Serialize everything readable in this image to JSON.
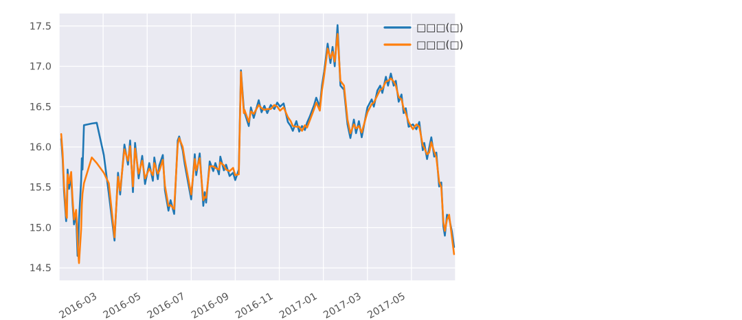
{
  "figure": {
    "background": "#ffffff",
    "plot_background": "#eaeaf2",
    "grid_color": "#ffffff",
    "tick_label_color": "#555555",
    "legend_text_color": "#262626"
  },
  "chart_data": {
    "type": "line",
    "title": "",
    "xlabel": "",
    "ylabel": "",
    "grid": true,
    "legend_position": "upper right",
    "x_axis": {
      "range_start": "2016-01-01",
      "range_end": "2017-07-01",
      "ticks": [
        "2016-03",
        "2016-05",
        "2016-07",
        "2016-09",
        "2016-11",
        "2017-01",
        "2017-03",
        "2017-05"
      ],
      "tick_rotation_deg": 30
    },
    "y_axis": {
      "range": [
        14.34,
        17.66
      ],
      "ticks": [
        "14.5",
        "15.0",
        "15.5",
        "16.0",
        "16.5",
        "17.0",
        "17.5"
      ]
    },
    "x": [
      "2016-01-04",
      "2016-01-06",
      "2016-01-08",
      "2016-01-11",
      "2016-01-12",
      "2016-01-13",
      "2016-01-15",
      "2016-01-18",
      "2016-01-20",
      "2016-01-22",
      "2016-01-25",
      "2016-01-26",
      "2016-01-27",
      "2016-01-28",
      "2016-01-29",
      "2016-02-01",
      "2016-02-02",
      "2016-02-03",
      "2016-02-05",
      "2016-02-16",
      "2016-02-23",
      "2016-03-02",
      "2016-03-09",
      "2016-03-17",
      "2016-03-22",
      "2016-03-25",
      "2016-03-31",
      "2016-04-05",
      "2016-04-08",
      "2016-04-12",
      "2016-04-15",
      "2016-04-20",
      "2016-04-25",
      "2016-04-29",
      "2016-05-04",
      "2016-05-09",
      "2016-05-11",
      "2016-05-16",
      "2016-05-18",
      "2016-05-23",
      "2016-05-26",
      "2016-05-31",
      "2016-06-03",
      "2016-06-08",
      "2016-06-13",
      "2016-06-15",
      "2016-06-20",
      "2016-06-23",
      "2016-06-28",
      "2016-07-01",
      "2016-07-06",
      "2016-07-08",
      "2016-07-13",
      "2016-07-18",
      "2016-07-20",
      "2016-07-22",
      "2016-07-27",
      "2016-08-01",
      "2016-08-04",
      "2016-08-09",
      "2016-08-11",
      "2016-08-16",
      "2016-08-19",
      "2016-08-24",
      "2016-08-29",
      "2016-09-01",
      "2016-09-06",
      "2016-09-09",
      "2016-09-13",
      "2016-09-14",
      "2016-09-20",
      "2016-09-23",
      "2016-09-27",
      "2016-10-03",
      "2016-10-07",
      "2016-10-11",
      "2016-10-15",
      "2016-10-20",
      "2016-10-25",
      "2016-10-29",
      "2016-11-02",
      "2016-11-07",
      "2016-11-13",
      "2016-11-17",
      "2016-11-20",
      "2016-11-25",
      "2016-11-29",
      "2016-12-02",
      "2016-12-06",
      "2016-12-09",
      "2016-12-13",
      "2016-12-16",
      "2016-12-19",
      "2016-12-22",
      "2016-12-27",
      "2016-12-30",
      "2017-01-02",
      "2017-01-07",
      "2017-01-11",
      "2017-01-14",
      "2017-01-17",
      "2017-01-21",
      "2017-01-25",
      "2017-01-30",
      "2017-02-04",
      "2017-02-08",
      "2017-02-13",
      "2017-02-16",
      "2017-02-20",
      "2017-02-24",
      "2017-03-01",
      "2017-03-07",
      "2017-03-10",
      "2017-03-15",
      "2017-03-19",
      "2017-03-22",
      "2017-03-27",
      "2017-03-30",
      "2017-04-03",
      "2017-04-07",
      "2017-04-10",
      "2017-04-14",
      "2017-04-18",
      "2017-04-21",
      "2017-04-24",
      "2017-04-28",
      "2017-05-03",
      "2017-05-08",
      "2017-05-12",
      "2017-05-17",
      "2017-05-19",
      "2017-05-23",
      "2017-05-26",
      "2017-05-29",
      "2017-06-02",
      "2017-06-05",
      "2017-06-09",
      "2017-06-12",
      "2017-06-15",
      "2017-06-17",
      "2017-06-20",
      "2017-06-23",
      "2017-06-27",
      "2017-06-30"
    ],
    "series": [
      {
        "name": "□□□(□)",
        "color": "#1f77b4",
        "values": [
          16.1,
          15.85,
          15.45,
          15.08,
          15.32,
          15.72,
          15.48,
          15.63,
          15.3,
          15.04,
          15.16,
          14.9,
          14.65,
          14.82,
          15.1,
          15.58,
          15.86,
          15.72,
          16.27,
          16.29,
          16.3,
          15.9,
          15.42,
          14.84,
          15.68,
          15.41,
          16.03,
          15.78,
          16.08,
          15.44,
          16.05,
          15.61,
          15.89,
          15.54,
          15.8,
          15.58,
          15.87,
          15.6,
          15.77,
          15.9,
          15.46,
          15.21,
          15.34,
          15.17,
          16.08,
          16.13,
          15.96,
          15.78,
          15.54,
          15.35,
          15.91,
          15.65,
          15.92,
          15.27,
          15.44,
          15.31,
          15.82,
          15.7,
          15.8,
          15.66,
          15.88,
          15.71,
          15.78,
          15.64,
          15.68,
          15.59,
          15.72,
          16.95,
          16.47,
          16.43,
          16.26,
          16.49,
          16.36,
          16.58,
          16.43,
          16.51,
          16.42,
          16.52,
          16.47,
          16.55,
          16.5,
          16.54,
          16.31,
          16.26,
          16.2,
          16.32,
          16.19,
          16.26,
          16.21,
          16.3,
          16.38,
          16.45,
          16.52,
          16.61,
          16.5,
          16.76,
          16.93,
          17.28,
          17.04,
          17.24,
          17.0,
          17.51,
          16.76,
          16.71,
          16.28,
          16.11,
          16.34,
          16.17,
          16.32,
          16.12,
          16.49,
          16.59,
          16.5,
          16.7,
          16.76,
          16.67,
          16.87,
          16.76,
          16.91,
          16.76,
          16.82,
          16.56,
          16.65,
          16.42,
          16.48,
          16.25,
          16.28,
          16.22,
          16.31,
          15.96,
          16.05,
          15.85,
          15.99,
          16.12,
          15.88,
          15.93,
          15.51,
          15.56,
          15.01,
          14.9,
          15.16,
          15.12,
          14.95,
          14.76
        ]
      },
      {
        "name": "□□□(□)",
        "color": "#ff7f0e",
        "values": [
          16.16,
          15.92,
          15.52,
          15.15,
          15.12,
          15.66,
          15.55,
          15.69,
          15.36,
          15.1,
          15.22,
          15.05,
          14.85,
          14.68,
          14.56,
          14.98,
          15.28,
          15.42,
          15.55,
          15.87,
          15.8,
          15.68,
          15.55,
          14.88,
          15.63,
          15.46,
          15.97,
          15.83,
          16.01,
          15.51,
          15.98,
          15.67,
          15.83,
          15.61,
          15.73,
          15.65,
          15.8,
          15.67,
          15.7,
          15.84,
          15.52,
          15.27,
          15.28,
          15.23,
          16.03,
          16.11,
          16.0,
          15.84,
          15.6,
          15.41,
          15.85,
          15.71,
          15.86,
          15.34,
          15.38,
          15.37,
          15.76,
          15.76,
          15.74,
          15.72,
          15.81,
          15.77,
          15.72,
          15.7,
          15.74,
          15.65,
          15.66,
          16.93,
          16.42,
          16.46,
          16.31,
          16.44,
          16.41,
          16.52,
          16.48,
          16.46,
          16.47,
          16.47,
          16.52,
          16.5,
          16.45,
          16.49,
          16.37,
          16.32,
          16.26,
          16.25,
          16.25,
          16.2,
          16.27,
          16.24,
          16.33,
          16.4,
          16.47,
          16.55,
          16.45,
          16.7,
          16.88,
          17.22,
          17.1,
          17.18,
          17.06,
          17.4,
          16.82,
          16.76,
          16.34,
          16.17,
          16.28,
          16.23,
          16.26,
          16.18,
          16.43,
          16.53,
          16.55,
          16.64,
          16.71,
          16.72,
          16.81,
          16.82,
          16.85,
          16.81,
          16.76,
          16.62,
          16.59,
          16.48,
          16.42,
          16.31,
          16.22,
          16.28,
          16.25,
          16.02,
          15.99,
          15.91,
          15.93,
          16.06,
          15.94,
          15.87,
          15.57,
          15.5,
          15.07,
          14.96,
          15.1,
          15.16,
          14.88,
          14.67
        ]
      }
    ]
  }
}
